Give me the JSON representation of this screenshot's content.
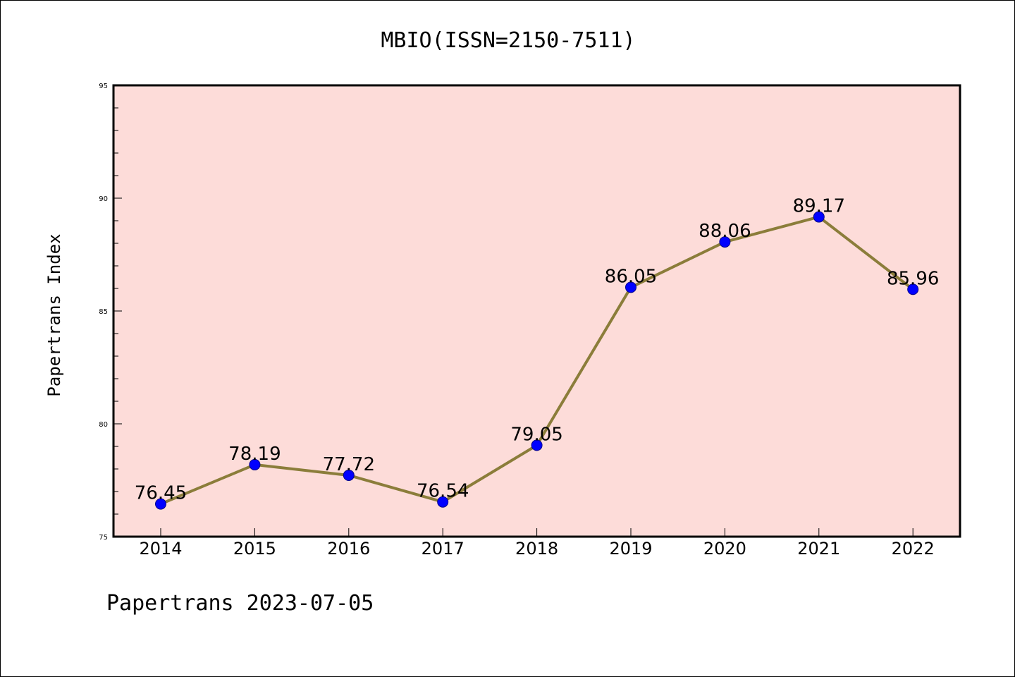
{
  "chart_data": {
    "type": "line",
    "title": "MBIO(ISSN=2150-7511)",
    "xlabel": "",
    "ylabel": "Papertrans Index",
    "categories": [
      "2014",
      "2015",
      "2016",
      "2017",
      "2018",
      "2019",
      "2020",
      "2021",
      "2022"
    ],
    "series": [
      {
        "values": [
          76.45,
          78.19,
          77.72,
          76.54,
          79.05,
          86.05,
          88.06,
          89.17,
          85.96
        ]
      }
    ],
    "data_labels": [
      "76.45",
      "78.19",
      "77.72",
      "76.54",
      "79.05",
      "86.05",
      "88.06",
      "89.17",
      "85.96"
    ],
    "ylim": [
      75,
      95
    ],
    "y_ticks": [
      75,
      80,
      85,
      90,
      95
    ],
    "y_minor_step": 1,
    "grid": false,
    "legend": "none",
    "footer": "Papertrans 2023-07-05",
    "colors": {
      "plot_background": "#fddcd9",
      "line": "#8b7d3a",
      "marker": "#0000ff",
      "axis": "#000000"
    }
  }
}
